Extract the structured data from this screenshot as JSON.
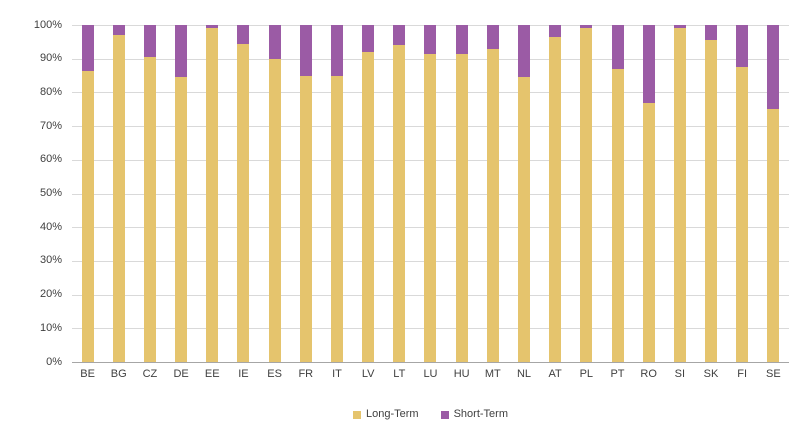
{
  "chart_data": {
    "type": "bar",
    "stacked": true,
    "normalized_to_100": true,
    "title": "",
    "xlabel": "",
    "ylabel": "",
    "ylim": [
      0,
      100
    ],
    "y_tick_step": 10,
    "y_tick_labels": [
      "0%",
      "10%",
      "20%",
      "30%",
      "40%",
      "50%",
      "60%",
      "70%",
      "80%",
      "90%",
      "100%"
    ],
    "grid": "horizontal",
    "legend_position": "bottom-center",
    "categories": [
      "BE",
      "BG",
      "CZ",
      "DE",
      "EE",
      "IE",
      "ES",
      "FR",
      "IT",
      "LV",
      "LT",
      "LU",
      "HU",
      "MT",
      "NL",
      "AT",
      "PL",
      "PT",
      "RO",
      "SI",
      "SK",
      "FI",
      "SE"
    ],
    "series": [
      {
        "name": "Long-Term",
        "color": "#e5c46d",
        "values": [
          86.5,
          97,
          90.5,
          84.5,
          99,
          94.5,
          90,
          85,
          85,
          92,
          94,
          91.5,
          91.5,
          93,
          84.5,
          96.5,
          99,
          87,
          77,
          99,
          95.5,
          87.5,
          75
        ]
      },
      {
        "name": "Short-Term",
        "color": "#9b5ba5",
        "values": [
          13.5,
          3,
          9.5,
          15.5,
          1,
          5.5,
          10,
          15,
          15,
          8,
          6,
          8.5,
          8.5,
          7,
          15.5,
          3.5,
          1,
          13,
          23,
          1,
          4.5,
          12.5,
          25
        ]
      }
    ]
  },
  "colors": {
    "long_term": "#e5c46d",
    "short_term": "#9b5ba5",
    "gridline": "#d9d9d9",
    "axis_line": "#a6a6a6",
    "text": "#404040",
    "background": "#ffffff"
  }
}
